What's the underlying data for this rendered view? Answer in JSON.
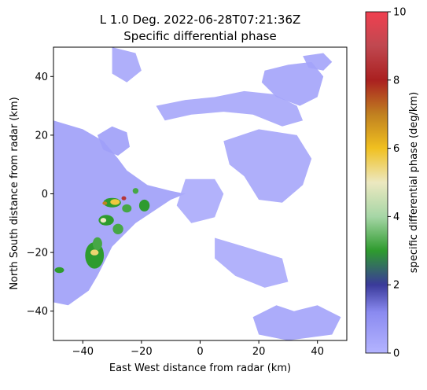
{
  "chart_data": {
    "type": "heatmap",
    "title": "L 1.0 Deg. 2022-06-28T07:21:36Z",
    "subtitle": "Specific differential phase",
    "xlabel": "East West distance from radar (km)",
    "ylabel": "North South distance from radar (km)",
    "xlim": [
      -50,
      50
    ],
    "ylim": [
      -50,
      50
    ],
    "xticks": [
      -40,
      -20,
      0,
      20,
      40
    ],
    "yticks": [
      -40,
      -20,
      0,
      20,
      40
    ],
    "xtick_labels": [
      "−40",
      "−20",
      "0",
      "20",
      "40"
    ],
    "ytick_labels": [
      "−40",
      "−20",
      "0",
      "20",
      "40"
    ],
    "grid": false,
    "colorbar": {
      "label": "specific differential phase (deg/km)",
      "range": [
        0,
        10
      ],
      "ticks": [
        0,
        2,
        4,
        6,
        8,
        10
      ],
      "tick_labels": [
        "0",
        "2",
        "4",
        "6",
        "8",
        "10"
      ],
      "stops": [
        {
          "value": 0,
          "color": "#b4b4ff"
        },
        {
          "value": 1.2,
          "color": "#8a8af0"
        },
        {
          "value": 2,
          "color": "#3a3a9a"
        },
        {
          "value": 3,
          "color": "#2e9b2e"
        },
        {
          "value": 4,
          "color": "#a6d6a6"
        },
        {
          "value": 5,
          "color": "#ece8c0"
        },
        {
          "value": 6,
          "color": "#f0c020"
        },
        {
          "value": 7,
          "color": "#c08020"
        },
        {
          "value": 8,
          "color": "#aa2020"
        },
        {
          "value": 9,
          "color": "#c04850"
        },
        {
          "value": 10,
          "color": "#f04050"
        }
      ]
    },
    "regions": [
      {
        "name": "west-band",
        "value": 0.6,
        "points": [
          [
            -50,
            25
          ],
          [
            -40,
            22
          ],
          [
            -33,
            18
          ],
          [
            -28,
            12
          ],
          [
            -25,
            8
          ],
          [
            -18,
            3
          ],
          [
            -10,
            1
          ],
          [
            -5,
            0
          ],
          [
            -10,
            -2
          ],
          [
            -22,
            -10
          ],
          [
            -30,
            -18
          ],
          [
            -35,
            -28
          ],
          [
            -38,
            -33
          ],
          [
            -45,
            -38
          ],
          [
            -50,
            -37
          ]
        ]
      },
      {
        "name": "northwest-cell",
        "value": 0.6,
        "points": [
          [
            -35,
            20
          ],
          [
            -30,
            23
          ],
          [
            -25,
            21
          ],
          [
            -24,
            16
          ],
          [
            -28,
            13
          ],
          [
            -33,
            15
          ]
        ]
      },
      {
        "name": "north-arc",
        "value": 0.4,
        "points": [
          [
            -15,
            30
          ],
          [
            -5,
            32
          ],
          [
            5,
            33
          ],
          [
            15,
            35
          ],
          [
            25,
            34
          ],
          [
            33,
            30
          ],
          [
            35,
            25
          ],
          [
            28,
            23
          ],
          [
            18,
            27
          ],
          [
            8,
            28
          ],
          [
            -3,
            27
          ],
          [
            -12,
            25
          ]
        ]
      },
      {
        "name": "north-top",
        "value": 0.4,
        "points": [
          [
            -30,
            50
          ],
          [
            -22,
            48
          ],
          [
            -20,
            42
          ],
          [
            -25,
            38
          ],
          [
            -30,
            41
          ]
        ]
      },
      {
        "name": "northeast-cell",
        "value": 0.5,
        "points": [
          [
            22,
            42
          ],
          [
            30,
            44
          ],
          [
            38,
            45
          ],
          [
            42,
            40
          ],
          [
            40,
            33
          ],
          [
            34,
            30
          ],
          [
            26,
            33
          ],
          [
            21,
            38
          ]
        ]
      },
      {
        "name": "northeast-upper",
        "value": 0.5,
        "points": [
          [
            35,
            47
          ],
          [
            42,
            48
          ],
          [
            45,
            45
          ],
          [
            42,
            42
          ],
          [
            37,
            43
          ]
        ]
      },
      {
        "name": "east-swirl",
        "value": 0.4,
        "points": [
          [
            8,
            18
          ],
          [
            20,
            22
          ],
          [
            33,
            20
          ],
          [
            38,
            12
          ],
          [
            35,
            3
          ],
          [
            28,
            -3
          ],
          [
            20,
            -2
          ],
          [
            15,
            6
          ],
          [
            10,
            10
          ]
        ]
      },
      {
        "name": "southeast-patch",
        "value": 0.3,
        "points": [
          [
            5,
            -15
          ],
          [
            15,
            -18
          ],
          [
            28,
            -22
          ],
          [
            30,
            -30
          ],
          [
            22,
            -32
          ],
          [
            12,
            -28
          ],
          [
            5,
            -22
          ]
        ]
      },
      {
        "name": "south-cell",
        "value": 0.5,
        "points": [
          [
            18,
            -42
          ],
          [
            26,
            -38
          ],
          [
            32,
            -40
          ],
          [
            40,
            -38
          ],
          [
            48,
            -42
          ],
          [
            45,
            -48
          ],
          [
            30,
            -50
          ],
          [
            20,
            -48
          ]
        ]
      },
      {
        "name": "center-scatter",
        "value": 0.3,
        "points": [
          [
            -5,
            5
          ],
          [
            5,
            5
          ],
          [
            8,
            0
          ],
          [
            5,
            -8
          ],
          [
            -3,
            -10
          ],
          [
            -8,
            -4
          ]
        ]
      }
    ],
    "cells": [
      {
        "x": -36,
        "y": -21,
        "rx": 3.2,
        "ry": 4.5,
        "value": 3.0
      },
      {
        "x": -35,
        "y": -17,
        "rx": 1.6,
        "ry": 2.2,
        "value": 3.2
      },
      {
        "x": -32,
        "y": -9,
        "rx": 2.6,
        "ry": 1.8,
        "value": 3.0
      },
      {
        "x": -28,
        "y": -12,
        "rx": 1.8,
        "ry": 1.8,
        "value": 3.2
      },
      {
        "x": -30,
        "y": -3,
        "rx": 3.0,
        "ry": 1.6,
        "value": 3.0
      },
      {
        "x": -25,
        "y": -5,
        "rx": 1.6,
        "ry": 1.4,
        "value": 3.2
      },
      {
        "x": -19,
        "y": -4,
        "rx": 1.8,
        "ry": 2.0,
        "value": 3.0
      },
      {
        "x": -22,
        "y": 1,
        "rx": 1.0,
        "ry": 1.0,
        "value": 3.2
      },
      {
        "x": -48,
        "y": -26,
        "rx": 1.6,
        "ry": 1.0,
        "value": 3.0
      },
      {
        "x": -29,
        "y": -2.8,
        "rx": 1.6,
        "ry": 1.0,
        "value": 5.8
      },
      {
        "x": -36,
        "y": -20,
        "rx": 1.4,
        "ry": 1.0,
        "value": 5.5
      },
      {
        "x": -33,
        "y": -9,
        "rx": 1.0,
        "ry": 0.8,
        "value": 5.0
      },
      {
        "x": -26,
        "y": -1.5,
        "rx": 0.8,
        "ry": 0.7,
        "value": 8.5
      },
      {
        "x": -32.5,
        "y": -3.2,
        "rx": 0.8,
        "ry": 0.6,
        "value": 7.0
      }
    ]
  }
}
